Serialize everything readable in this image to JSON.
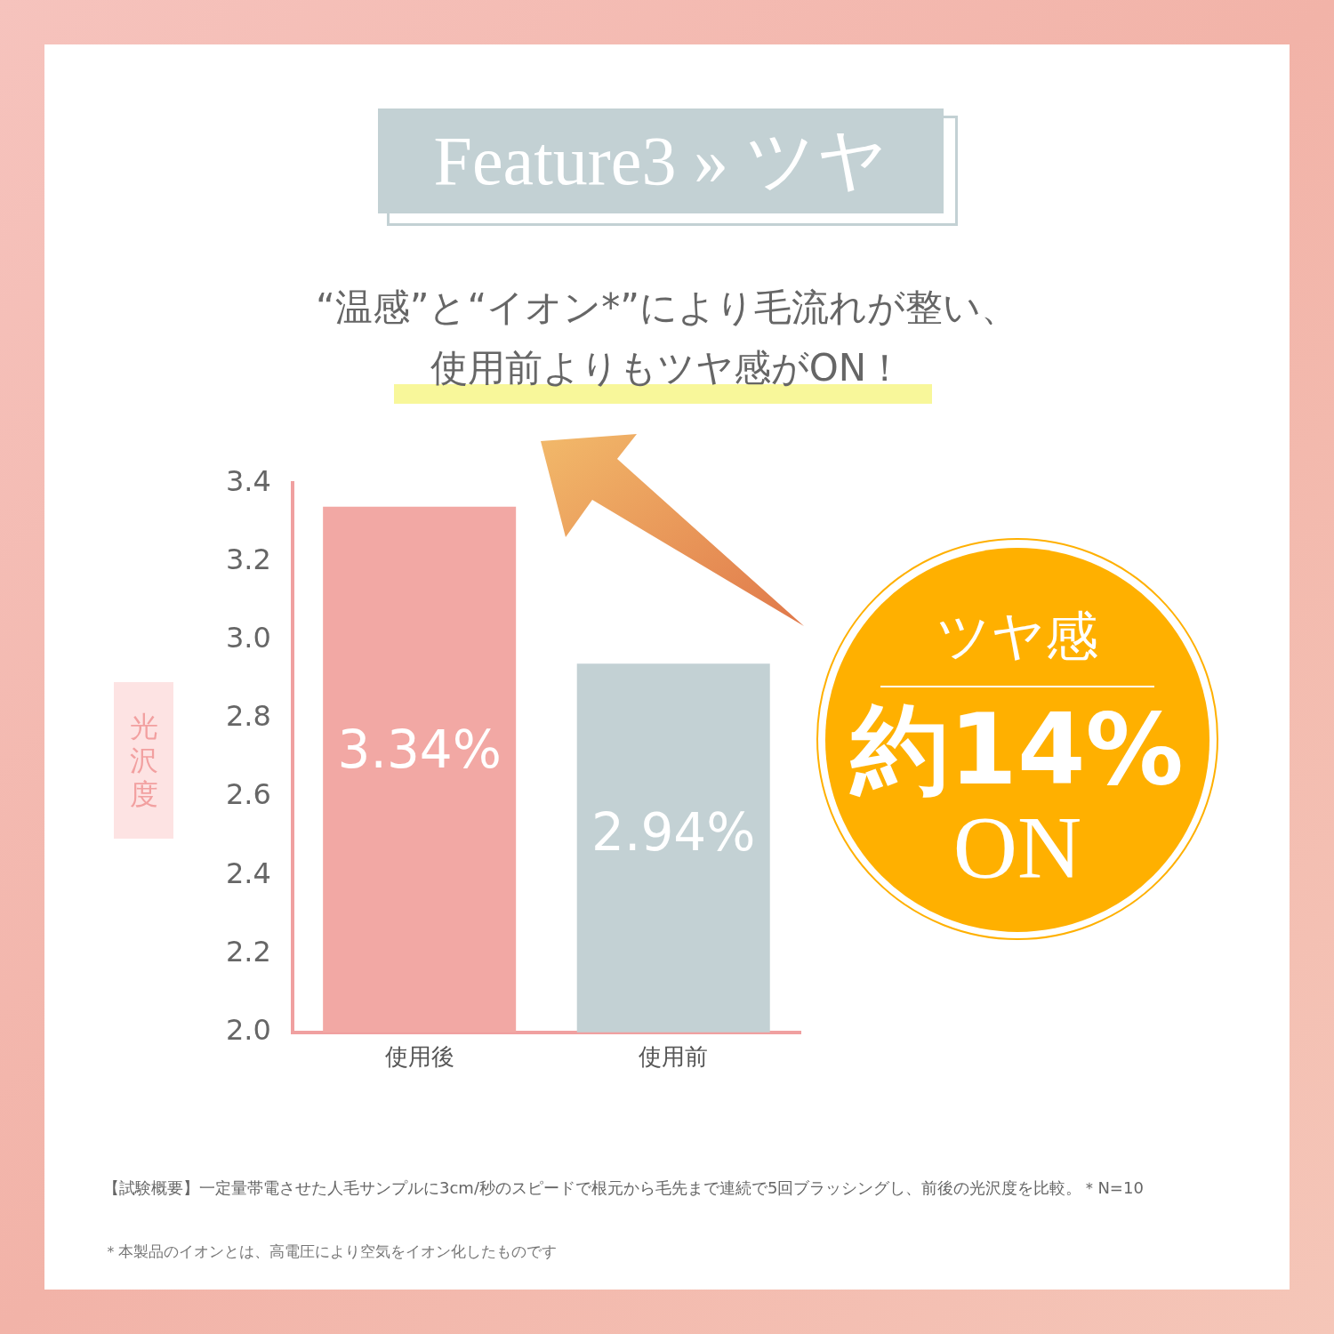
{
  "chart_data": {
    "type": "bar",
    "title": "Feature3 » ツヤ",
    "subtitle": "“温感”と“イオン*”により毛流れが整い、",
    "ylabel": "光沢度",
    "categories": [
      "使用後",
      "使用前"
    ],
    "series": [
      {
        "values": [
          3.34,
          2.94
        ],
        "colors": [
          "#f2a8a4",
          "#c3d1d4"
        ],
        "value_labels": [
          "3.34%",
          "2.94%"
        ]
      }
    ],
    "ylim": [
      2.0,
      3.4
    ],
    "yticks": [
      {
        "value": 2.0,
        "label": "2.0"
      },
      {
        "value": 2.2,
        "label": "2.2"
      },
      {
        "value": 2.4,
        "label": "2.4"
      },
      {
        "value": 2.6,
        "label": "2.6"
      },
      {
        "value": 2.8,
        "label": "2.8"
      },
      {
        "value": 3.0,
        "label": "3.0"
      },
      {
        "value": 3.2,
        "label": "3.2"
      },
      {
        "value": 3.4,
        "label": "3.4"
      }
    ],
    "grid": false,
    "legend": false,
    "annotations": [
      "使用前よりもツヤ感がON！",
      "ツヤ感",
      "約14%",
      "ON",
      "【試験概要】一定量帯電させた人毛サンプルに3cm/秒のスピードで根元から毛先まで連続で5回ブラッシングし、前後の光沢度を比較。＊N=10",
      "＊本製品のイオンとは、高電圧により空気をイオン化したものです"
    ]
  }
}
